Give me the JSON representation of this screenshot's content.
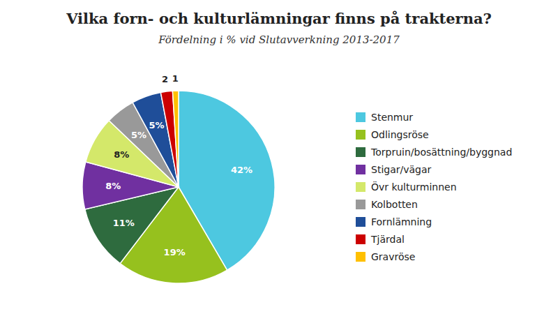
{
  "chart_data": {
    "type": "pie",
    "title": "Vilka forn- och kulturlämningar finns på trakterna?",
    "subtitle": "Fördelning i % vid Slutavverkning 2013-2017",
    "categories": [
      "Stenmur",
      "Odlingsröse",
      "Torpruin/bosättning/byggnad",
      "Stigar/vägar",
      "Övr kulturminnen",
      "Kolbotten",
      "Fornlämning",
      "Tjärdal",
      "Gravröse"
    ],
    "values": [
      42,
      19,
      11,
      8,
      8,
      5,
      5,
      2,
      1
    ],
    "value_labels": [
      "42%",
      "19%",
      "11%",
      "8%",
      "8%",
      "5%",
      "5%",
      "2",
      "1"
    ],
    "colors": [
      "#4DC8E0",
      "#96C11E",
      "#2E6B3E",
      "#7030A0",
      "#D4E86A",
      "#999999",
      "#1F4E99",
      "#CC0000",
      "#FFC000"
    ],
    "data_labels": true,
    "legend": "right"
  }
}
